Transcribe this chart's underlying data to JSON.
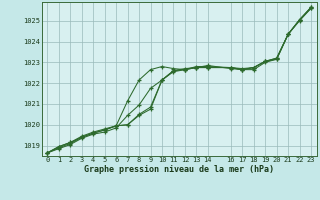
{
  "xlabel": "Graphe pression niveau de la mer (hPa)",
  "background_color": "#c5e8e8",
  "plot_bg": "#d8f0f0",
  "line_color": "#2d6a2d",
  "ylim": [
    1018.5,
    1025.9
  ],
  "xlim": [
    -0.5,
    23.5
  ],
  "yticks": [
    1019,
    1020,
    1021,
    1022,
    1023,
    1024,
    1025
  ],
  "xticks": [
    0,
    1,
    2,
    3,
    4,
    5,
    6,
    7,
    8,
    9,
    10,
    11,
    12,
    13,
    14,
    16,
    17,
    18,
    19,
    20,
    21,
    22,
    23
  ],
  "series": [
    [
      1018.65,
      1018.85,
      1019.05,
      1019.35,
      1019.55,
      1019.65,
      1019.85,
      1020.45,
      1020.95,
      1021.75,
      1022.15,
      1022.6,
      1022.7,
      1022.75,
      1022.75,
      null,
      1022.75,
      1022.65,
      1022.75,
      1023.05,
      1023.15,
      1024.35,
      1025.05,
      1025.65
    ],
    [
      1018.65,
      1018.9,
      1019.1,
      1019.4,
      1019.6,
      1019.75,
      1019.95,
      1020.0,
      1020.45,
      1020.75,
      1022.15,
      1022.6,
      1022.65,
      1022.75,
      1022.75,
      null,
      1022.75,
      1022.65,
      1022.75,
      1023.05,
      1023.2,
      1024.35,
      1025.05,
      1025.65
    ],
    [
      1018.65,
      1018.95,
      1019.15,
      1019.45,
      1019.65,
      1019.8,
      1019.95,
      1021.15,
      1022.15,
      1022.65,
      1022.8,
      1022.7,
      1022.65,
      1022.75,
      1022.85,
      null,
      1022.7,
      1022.65,
      1022.65,
      1023.0,
      1023.15,
      1024.35,
      1025.0,
      1025.6
    ],
    [
      1018.65,
      1018.95,
      1019.15,
      1019.4,
      1019.6,
      1019.75,
      1019.95,
      1020.0,
      1020.5,
      1020.85,
      1022.15,
      1022.55,
      1022.65,
      1022.8,
      1022.8,
      null,
      1022.75,
      1022.7,
      1022.75,
      1023.05,
      1023.2,
      1024.35,
      1025.05,
      1025.6
    ]
  ]
}
